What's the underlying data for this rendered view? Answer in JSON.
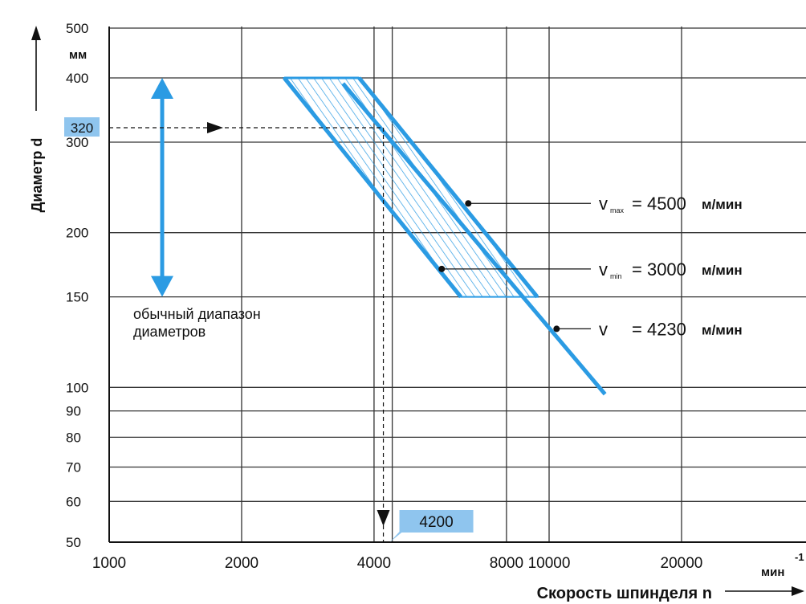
{
  "colors": {
    "accent": "#2b9be3",
    "grid": "#333333",
    "label_box": "#8fc5ee"
  },
  "chart_data": {
    "type": "line",
    "scale": "log-log",
    "xlabel": "Скорость шпинделя n",
    "xunit": "мин",
    "xunit_exp": "-1",
    "ylabel": "Диаметр d",
    "yunit": "мм",
    "xlim": [
      1000,
      38000
    ],
    "ylim": [
      50,
      500
    ],
    "x_ticks": [
      {
        "v": 1000,
        "label": "1000"
      },
      {
        "v": 2000,
        "label": "2000"
      },
      {
        "v": 4000,
        "label": "4000"
      },
      {
        "v": 8000,
        "label": "8000"
      },
      {
        "v": 10000,
        "label": "10000"
      },
      {
        "v": 20000,
        "label": "20000"
      }
    ],
    "y_ticks": [
      {
        "v": 50,
        "label": "50"
      },
      {
        "v": 60,
        "label": "60"
      },
      {
        "v": 70,
        "label": "70"
      },
      {
        "v": 80,
        "label": "80"
      },
      {
        "v": 90,
        "label": "90"
      },
      {
        "v": 100,
        "label": "100"
      },
      {
        "v": 150,
        "label": "150"
      },
      {
        "v": 200,
        "label": "200"
      },
      {
        "v": 300,
        "label": "300"
      },
      {
        "v": 400,
        "label": "400"
      },
      {
        "v": 500,
        "label": "500"
      }
    ],
    "x_grid": [
      1000,
      2000,
      4000,
      4400,
      8000,
      10000,
      20000
    ],
    "series": [
      {
        "name_main": "v",
        "name_sub": "max",
        "name": "v max",
        "value_label": "= 4500",
        "unit": "м/мин",
        "points": [
          [
            3700,
            400
          ],
          [
            9400,
            150
          ]
        ]
      },
      {
        "name_main": "v",
        "name_sub": "min",
        "name": "v min",
        "value_label": "= 3000",
        "unit": "м/мин",
        "points": [
          [
            2500,
            400
          ],
          [
            6300,
            150
          ]
        ]
      },
      {
        "name_main": "v",
        "name_sub": "",
        "name": "v",
        "value_label": "= 4230",
        "unit": "м/мин",
        "points": [
          [
            3400,
            390
          ],
          [
            13400,
            97
          ]
        ]
      }
    ],
    "markers": [
      {
        "series": "v max",
        "point": [
          6550,
          228
        ]
      },
      {
        "series": "v min",
        "point": [
          5700,
          170
        ]
      },
      {
        "series": "v",
        "point": [
          10400,
          130
        ]
      }
    ],
    "range_arrow": {
      "from": 150,
      "to": 400,
      "x": 1380
    },
    "range_text": [
      "обычный диапазон",
      "диаметров"
    ],
    "example": {
      "d": 320,
      "d_label": "320",
      "n": 4200,
      "n_label": "4200"
    }
  }
}
